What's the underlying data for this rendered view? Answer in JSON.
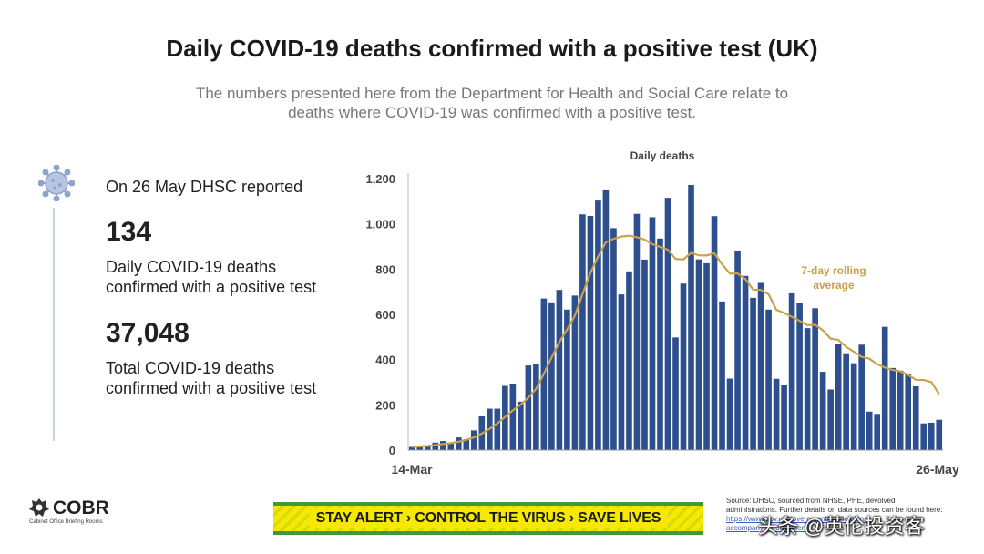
{
  "title": "Daily COVID-19 deaths confirmed with a positive test (UK)",
  "subtitle_line1": "The numbers presented here from the Department for Health and Social Care relate to",
  "subtitle_line2": "deaths where COVID-19 was confirmed with a positive test.",
  "stats": {
    "intro": "On 26 May DHSC reported",
    "daily_value": "134",
    "daily_line1": "Daily COVID-19 deaths",
    "daily_line2": "confirmed with a positive test",
    "total_value": "37,048",
    "total_line1": "Total COVID-19 deaths",
    "total_line2": "confirmed with a positive test"
  },
  "icons": {
    "virus": "coronavirus-icon",
    "crest": "royal-crest-icon"
  },
  "colors": {
    "bar": "#2e4f8e",
    "average_line": "#c9a24a",
    "banner_yellow": "#f6e800",
    "banner_green": "#3d9a3a"
  },
  "chart_data": {
    "type": "bar",
    "title": "Daily deaths",
    "x_start_label": "14-Mar",
    "x_end_label": "26-May",
    "ylim": [
      0,
      1200
    ],
    "yticks": [
      0,
      200,
      400,
      600,
      800,
      1000,
      1200
    ],
    "ytick_labels": [
      "0",
      "200",
      "400",
      "600",
      "800",
      "1,000",
      "1,200"
    ],
    "series": [
      {
        "type": "bar",
        "values": [
          14,
          20,
          16,
          33,
          40,
          33,
          56,
          48,
          87,
          149,
          183,
          183,
          284,
          294,
          214,
          374,
          381,
          670,
          653,
          708,
          621,
          683,
          1042,
          1035,
          1103,
          1152,
          981,
          688,
          790,
          1044,
          842,
          1029,
          935,
          1115,
          498,
          736,
          1172,
          843,
          826,
          1034,
          657,
          316,
          878,
          770,
          673,
          739,
          621,
          315,
          288,
          693,
          649,
          539,
          627,
          346,
          268,
          468,
          428,
          384,
          466,
          170,
          160,
          545,
          363,
          351,
          338,
          282,
          118,
          121,
          134
        ]
      },
      {
        "type": "line",
        "name": "7-day rolling average",
        "values": [
          14,
          16,
          18,
          22,
          27,
          31,
          37,
          45,
          56,
          73,
          94,
          117,
          146,
          175,
          200,
          232,
          271,
          337,
          409,
          477,
          533,
          594,
          690,
          782,
          855,
          919,
          934,
          944,
          948,
          941,
          930,
          910,
          898,
          886,
          845,
          843,
          872,
          861,
          860,
          870,
          822,
          780,
          781,
          756,
          709,
          708,
          688,
          620,
          606,
          589,
          571,
          552,
          554,
          530,
          493,
          487,
          456,
          435,
          412,
          404,
          380,
          365,
          354,
          348,
          332,
          311,
          310,
          301,
          247
        ]
      }
    ]
  }
}
